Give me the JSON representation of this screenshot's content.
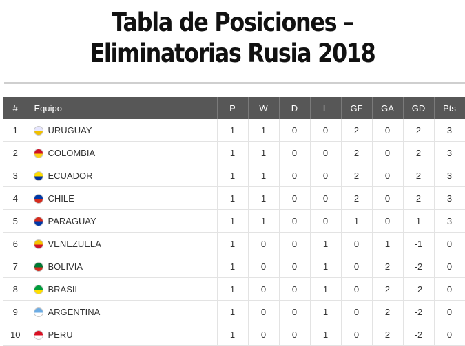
{
  "page": {
    "title": "Tabla de Posiciones – Eliminatorias Rusia 2018"
  },
  "table": {
    "headers": {
      "pos": "#",
      "team": "Equipo",
      "p": "P",
      "w": "W",
      "d": "D",
      "l": "L",
      "gf": "GF",
      "ga": "GA",
      "gd": "GD",
      "pts": "Pts"
    },
    "rows": [
      {
        "pos": "1",
        "team": "URUGUAY",
        "flag_icon": "uruguay-flag-icon",
        "flag_color": "#e6e6ff",
        "flag_accent": "#f0c000",
        "p": "1",
        "w": "1",
        "d": "0",
        "l": "0",
        "gf": "2",
        "ga": "0",
        "gd": "2",
        "pts": "3"
      },
      {
        "pos": "2",
        "team": "COLOMBIA",
        "flag_icon": "colombia-flag-icon",
        "flag_color": "#ce1126",
        "flag_accent": "#fcd116",
        "p": "1",
        "w": "1",
        "d": "0",
        "l": "0",
        "gf": "2",
        "ga": "0",
        "gd": "2",
        "pts": "3"
      },
      {
        "pos": "3",
        "team": "ECUADOR",
        "flag_icon": "ecuador-flag-icon",
        "flag_color": "#ffdd00",
        "flag_accent": "#0033a0",
        "p": "1",
        "w": "1",
        "d": "0",
        "l": "0",
        "gf": "2",
        "ga": "0",
        "gd": "2",
        "pts": "3"
      },
      {
        "pos": "4",
        "team": "CHILE",
        "flag_icon": "chile-flag-icon",
        "flag_color": "#0039a6",
        "flag_accent": "#d52b1e",
        "p": "1",
        "w": "1",
        "d": "0",
        "l": "0",
        "gf": "2",
        "ga": "0",
        "gd": "2",
        "pts": "3"
      },
      {
        "pos": "5",
        "team": "PARAGUAY",
        "flag_icon": "paraguay-flag-icon",
        "flag_color": "#d52b1e",
        "flag_accent": "#0038a8",
        "p": "1",
        "w": "1",
        "d": "0",
        "l": "0",
        "gf": "1",
        "ga": "0",
        "gd": "1",
        "pts": "3"
      },
      {
        "pos": "6",
        "team": "VENEZUELA",
        "flag_icon": "venezuela-flag-icon",
        "flag_color": "#f4c300",
        "flag_accent": "#cf142b",
        "p": "1",
        "w": "0",
        "d": "0",
        "l": "1",
        "gf": "0",
        "ga": "1",
        "gd": "-1",
        "pts": "0"
      },
      {
        "pos": "7",
        "team": "BOLIVIA",
        "flag_icon": "bolivia-flag-icon",
        "flag_color": "#007934",
        "flag_accent": "#d52b1e",
        "p": "1",
        "w": "0",
        "d": "0",
        "l": "1",
        "gf": "0",
        "ga": "2",
        "gd": "-2",
        "pts": "0"
      },
      {
        "pos": "8",
        "team": "BRASIL",
        "flag_icon": "brasil-flag-icon",
        "flag_color": "#009c3b",
        "flag_accent": "#ffdf00",
        "p": "1",
        "w": "0",
        "d": "0",
        "l": "1",
        "gf": "0",
        "ga": "2",
        "gd": "-2",
        "pts": "0"
      },
      {
        "pos": "9",
        "team": "ARGENTINA",
        "flag_icon": "argentina-flag-icon",
        "flag_color": "#6cace4",
        "flag_accent": "#ffffff",
        "p": "1",
        "w": "0",
        "d": "0",
        "l": "1",
        "gf": "0",
        "ga": "2",
        "gd": "-2",
        "pts": "0"
      },
      {
        "pos": "10",
        "team": "PERU",
        "flag_icon": "peru-flag-icon",
        "flag_color": "#d91023",
        "flag_accent": "#ffffff",
        "p": "1",
        "w": "0",
        "d": "0",
        "l": "1",
        "gf": "0",
        "ga": "2",
        "gd": "-2",
        "pts": "0"
      }
    ]
  },
  "colors": {
    "header_bg": "#575757",
    "header_text": "#ffffff",
    "grid": "#e3e3e3",
    "rule": "#cfcfcf"
  }
}
